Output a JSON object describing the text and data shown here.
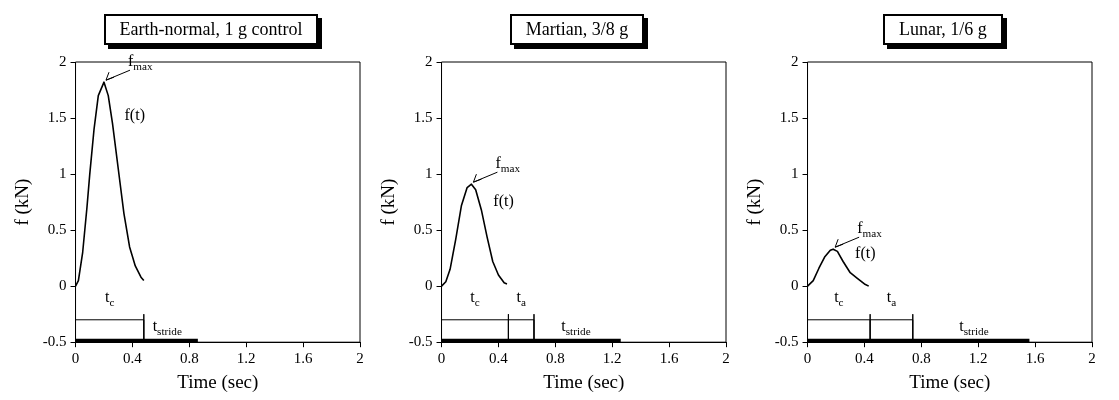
{
  "chart_data": [
    {
      "type": "line",
      "title": "Earth-normal, 1 g control",
      "xlabel": "Time (sec)",
      "ylabel": "f (kN)",
      "xlim": [
        0,
        2
      ],
      "ylim": [
        -0.5,
        2
      ],
      "xticks": [
        0,
        0.4,
        0.8,
        1.2,
        1.6,
        2
      ],
      "yticks": [
        -0.5,
        0,
        0.5,
        1,
        1.5,
        2
      ],
      "grid": false,
      "line_style": "solid",
      "series": [
        {
          "name": "f(t)",
          "color": "#000000",
          "x": [
            0,
            0.02,
            0.05,
            0.08,
            0.1,
            0.13,
            0.16,
            0.2,
            0.23,
            0.26,
            0.3,
            0.34,
            0.38,
            0.42,
            0.46,
            0.48
          ],
          "values": [
            0,
            0.05,
            0.3,
            0.7,
            1.0,
            1.4,
            1.7,
            1.82,
            1.7,
            1.45,
            1.05,
            0.65,
            0.35,
            0.18,
            0.08,
            0.05
          ]
        },
        {
          "name": "t$_{c}$",
          "color": "#000000",
          "x": [
            0,
            0.48,
            0.48,
            0.48
          ],
          "values": [
            -0.3,
            -0.3,
            -0.25,
            -0.5
          ]
        },
        {
          "name": "t$_{stride}$",
          "color": "#000000",
          "x": [
            0,
            0.86
          ],
          "values": [
            -0.5,
            -0.5
          ]
        }
      ],
      "annotations": [
        {
          "text": "f$_{max}$",
          "x": 0.2,
          "y": 1.82
        }
      ]
    },
    {
      "type": "line",
      "title": "Martian, 3/8 g",
      "xlabel": "Time (sec)",
      "ylabel": "f (kN)",
      "xlim": [
        0,
        2
      ],
      "ylim": [
        -0.5,
        2
      ],
      "xticks": [
        0,
        0.4,
        0.8,
        1.2,
        1.6,
        2
      ],
      "yticks": [
        -0.5,
        0,
        0.5,
        1,
        1.5,
        2
      ],
      "grid": false,
      "line_style": "solid",
      "series": [
        {
          "name": "f(t)",
          "color": "#000000",
          "x": [
            0,
            0.03,
            0.06,
            0.1,
            0.14,
            0.18,
            0.21,
            0.24,
            0.28,
            0.32,
            0.36,
            0.4,
            0.44,
            0.46
          ],
          "values": [
            0,
            0.04,
            0.15,
            0.42,
            0.72,
            0.88,
            0.91,
            0.86,
            0.68,
            0.44,
            0.22,
            0.1,
            0.03,
            0.02
          ]
        },
        {
          "name": "t$_{c}$",
          "color": "#000000",
          "x": [
            0,
            0.47,
            0.47,
            0.47
          ],
          "values": [
            -0.3,
            -0.3,
            -0.25,
            -0.5
          ]
        },
        {
          "name": "t$_{a}$",
          "color": "#000000",
          "x": [
            0.47,
            0.65,
            0.65,
            0.65
          ],
          "values": [
            -0.3,
            -0.3,
            -0.25,
            -0.5
          ]
        },
        {
          "name": "t$_{stride}$",
          "color": "#000000",
          "x": [
            0,
            1.26
          ],
          "values": [
            -0.5,
            -0.5
          ]
        }
      ],
      "annotations": [
        {
          "text": "f$_{max}$",
          "x": 0.21,
          "y": 0.91
        }
      ]
    },
    {
      "type": "line",
      "title": "Lunar, 1/6 g",
      "xlabel": "Time (sec)",
      "ylabel": "f (kN)",
      "xlim": [
        0,
        2
      ],
      "ylim": [
        -0.5,
        2
      ],
      "xticks": [
        0,
        0.4,
        0.8,
        1.2,
        1.6,
        2
      ],
      "yticks": [
        -0.5,
        0,
        0.5,
        1,
        1.5,
        2
      ],
      "grid": false,
      "line_style": "solid",
      "series": [
        {
          "name": "f(t)",
          "color": "#000000",
          "x": [
            0,
            0.04,
            0.08,
            0.12,
            0.16,
            0.18,
            0.21,
            0.25,
            0.3,
            0.35,
            0.4,
            0.43
          ],
          "values": [
            0,
            0.05,
            0.16,
            0.26,
            0.32,
            0.33,
            0.31,
            0.22,
            0.12,
            0.07,
            0.02,
            0
          ]
        },
        {
          "name": "t$_{c}$",
          "color": "#000000",
          "x": [
            0,
            0.44,
            0.44,
            0.44
          ],
          "values": [
            -0.3,
            -0.3,
            -0.25,
            -0.5
          ]
        },
        {
          "name": "t$_{a}$",
          "color": "#000000",
          "x": [
            0.44,
            0.74,
            0.74,
            0.74
          ],
          "values": [
            -0.3,
            -0.3,
            -0.25,
            -0.5
          ]
        },
        {
          "name": "t$_{stride}$",
          "color": "#000000",
          "x": [
            0,
            1.56
          ],
          "values": [
            -0.5,
            -0.5
          ]
        }
      ],
      "annotations": [
        {
          "text": "f$_{max}$",
          "x": 0.18,
          "y": 0.33
        }
      ]
    }
  ]
}
